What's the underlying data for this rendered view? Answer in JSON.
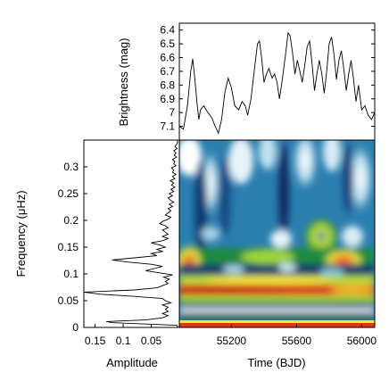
{
  "chart_data": [
    {
      "type": "line",
      "name": "light-curve",
      "xlabel": "",
      "ylabel": "Brightness (mag)",
      "xlim": [
        54880,
        56080
      ],
      "ylim": [
        7.2,
        6.35
      ],
      "y_inverted": true,
      "yticks": [
        6.4,
        6.5,
        6.6,
        6.7,
        6.8,
        6.9,
        7,
        7.1
      ],
      "ytick_labels": [
        "6.4",
        "6.5",
        "6.6",
        "6.7",
        "6.8",
        "6.9",
        "7",
        "7.1"
      ],
      "points": [
        [
          54880,
          7.1
        ],
        [
          54905,
          7.12
        ],
        [
          54930,
          6.95
        ],
        [
          54950,
          6.7
        ],
        [
          54962,
          6.61
        ],
        [
          54975,
          6.75
        ],
        [
          54990,
          6.95
        ],
        [
          55000,
          7.05
        ],
        [
          55010,
          6.98
        ],
        [
          55030,
          6.95
        ],
        [
          55050,
          6.99
        ],
        [
          55080,
          7.04
        ],
        [
          55100,
          7.1
        ],
        [
          55120,
          7.15
        ],
        [
          55140,
          7.05
        ],
        [
          55160,
          6.85
        ],
        [
          55180,
          6.75
        ],
        [
          55200,
          6.82
        ],
        [
          55220,
          6.95
        ],
        [
          55245,
          6.98
        ],
        [
          55265,
          6.92
        ],
        [
          55285,
          6.95
        ],
        [
          55300,
          7.02
        ],
        [
          55320,
          6.9
        ],
        [
          55340,
          6.7
        ],
        [
          55360,
          6.5
        ],
        [
          55372,
          6.48
        ],
        [
          55385,
          6.6
        ],
        [
          55400,
          6.78
        ],
        [
          55415,
          6.72
        ],
        [
          55430,
          6.68
        ],
        [
          55450,
          6.75
        ],
        [
          55465,
          6.72
        ],
        [
          55480,
          6.78
        ],
        [
          55495,
          6.9
        ],
        [
          55510,
          6.78
        ],
        [
          55530,
          6.6
        ],
        [
          55548,
          6.42
        ],
        [
          55560,
          6.44
        ],
        [
          55575,
          6.56
        ],
        [
          55590,
          6.72
        ],
        [
          55605,
          6.62
        ],
        [
          55620,
          6.7
        ],
        [
          55635,
          6.78
        ],
        [
          55650,
          6.66
        ],
        [
          55665,
          6.52
        ],
        [
          55680,
          6.48
        ],
        [
          55695,
          6.64
        ],
        [
          55710,
          6.84
        ],
        [
          55725,
          6.72
        ],
        [
          55740,
          6.62
        ],
        [
          55755,
          6.72
        ],
        [
          55770,
          6.86
        ],
        [
          55785,
          6.7
        ],
        [
          55800,
          6.5
        ],
        [
          55815,
          6.45
        ],
        [
          55830,
          6.58
        ],
        [
          55845,
          6.76
        ],
        [
          55860,
          6.62
        ],
        [
          55875,
          6.55
        ],
        [
          55890,
          6.68
        ],
        [
          55905,
          6.84
        ],
        [
          55920,
          6.72
        ],
        [
          55935,
          6.62
        ],
        [
          55950,
          6.76
        ],
        [
          55965,
          6.92
        ],
        [
          55980,
          6.8
        ],
        [
          56000,
          6.98
        ],
        [
          56020,
          6.95
        ],
        [
          56040,
          7.02
        ],
        [
          56060,
          7.05
        ],
        [
          56080,
          7.0
        ]
      ]
    },
    {
      "type": "line",
      "name": "amplitude-spectrum",
      "xlabel": "Amplitude",
      "ylabel": "Frequency (μHz)",
      "xlim": [
        0.17,
        0
      ],
      "x_inverted": true,
      "ylim": [
        0,
        0.35
      ],
      "xticks": [
        0.15,
        0.1,
        0.05
      ],
      "xtick_labels": [
        "0.15",
        "0.1",
        "0.05"
      ],
      "yticks": [
        0,
        0.05,
        0.1,
        0.15,
        0.2,
        0.25,
        0.3
      ],
      "ytick_labels": [
        "0",
        "0.05",
        "0.1",
        "0.15",
        "0.2",
        "0.25",
        "0.3"
      ],
      "points": [
        [
          0.002,
          0.0
        ],
        [
          0.005,
          0.004
        ],
        [
          0.12,
          0.009
        ],
        [
          0.13,
          0.011
        ],
        [
          0.06,
          0.014
        ],
        [
          0.03,
          0.018
        ],
        [
          0.02,
          0.022
        ],
        [
          0.03,
          0.026
        ],
        [
          0.02,
          0.03
        ],
        [
          0.025,
          0.034
        ],
        [
          0.02,
          0.038
        ],
        [
          0.03,
          0.042
        ],
        [
          0.015,
          0.046
        ],
        [
          0.025,
          0.05
        ],
        [
          0.03,
          0.054
        ],
        [
          0.08,
          0.058
        ],
        [
          0.14,
          0.062
        ],
        [
          0.17,
          0.066
        ],
        [
          0.08,
          0.07
        ],
        [
          0.04,
          0.074
        ],
        [
          0.03,
          0.078
        ],
        [
          0.02,
          0.082
        ],
        [
          0.025,
          0.086
        ],
        [
          0.018,
          0.09
        ],
        [
          0.028,
          0.094
        ],
        [
          0.012,
          0.098
        ],
        [
          0.035,
          0.102
        ],
        [
          0.06,
          0.106
        ],
        [
          0.045,
          0.11
        ],
        [
          0.03,
          0.114
        ],
        [
          0.05,
          0.118
        ],
        [
          0.09,
          0.122
        ],
        [
          0.12,
          0.126
        ],
        [
          0.08,
          0.13
        ],
        [
          0.04,
          0.134
        ],
        [
          0.05,
          0.138
        ],
        [
          0.03,
          0.142
        ],
        [
          0.04,
          0.146
        ],
        [
          0.025,
          0.15
        ],
        [
          0.035,
          0.154
        ],
        [
          0.05,
          0.158
        ],
        [
          0.03,
          0.162
        ],
        [
          0.02,
          0.166
        ],
        [
          0.03,
          0.17
        ],
        [
          0.02,
          0.174
        ],
        [
          0.025,
          0.178
        ],
        [
          0.03,
          0.182
        ],
        [
          0.02,
          0.186
        ],
        [
          0.025,
          0.19
        ],
        [
          0.035,
          0.194
        ],
        [
          0.03,
          0.198
        ],
        [
          0.02,
          0.202
        ],
        [
          0.015,
          0.206
        ],
        [
          0.025,
          0.21
        ],
        [
          0.02,
          0.214
        ],
        [
          0.015,
          0.218
        ],
        [
          0.02,
          0.222
        ],
        [
          0.012,
          0.226
        ],
        [
          0.018,
          0.23
        ],
        [
          0.01,
          0.234
        ],
        [
          0.016,
          0.238
        ],
        [
          0.02,
          0.242
        ],
        [
          0.012,
          0.246
        ],
        [
          0.018,
          0.25
        ],
        [
          0.01,
          0.254
        ],
        [
          0.015,
          0.258
        ],
        [
          0.008,
          0.262
        ],
        [
          0.014,
          0.266
        ],
        [
          0.01,
          0.27
        ],
        [
          0.016,
          0.274
        ],
        [
          0.008,
          0.278
        ],
        [
          0.012,
          0.282
        ],
        [
          0.006,
          0.286
        ],
        [
          0.012,
          0.29
        ],
        [
          0.01,
          0.294
        ],
        [
          0.014,
          0.298
        ],
        [
          0.006,
          0.302
        ],
        [
          0.01,
          0.306
        ],
        [
          0.008,
          0.31
        ],
        [
          0.012,
          0.314
        ],
        [
          0.005,
          0.318
        ],
        [
          0.009,
          0.322
        ],
        [
          0.006,
          0.326
        ],
        [
          0.01,
          0.33
        ],
        [
          0.004,
          0.334
        ],
        [
          0.008,
          0.338
        ],
        [
          0.005,
          0.342
        ],
        [
          0.003,
          0.346
        ],
        [
          0.004,
          0.35
        ]
      ]
    },
    {
      "type": "heatmap",
      "name": "wavelet-power",
      "xlabel": "Time (BJD)",
      "ylabel": "",
      "xlim": [
        54880,
        56080
      ],
      "ylim": [
        0,
        0.35
      ],
      "xticks": [
        55200,
        55600,
        56000
      ],
      "xtick_labels": [
        "55200",
        "55600",
        "56000"
      ],
      "colormap": [
        "#ffffff",
        "#7fb8d6",
        "#1f6d9a",
        "#0a2f6b",
        "#1a8a3a",
        "#9fd63a",
        "#f0e83c",
        "#f2a32a",
        "#e8321e",
        "#d8101a"
      ]
    }
  ]
}
